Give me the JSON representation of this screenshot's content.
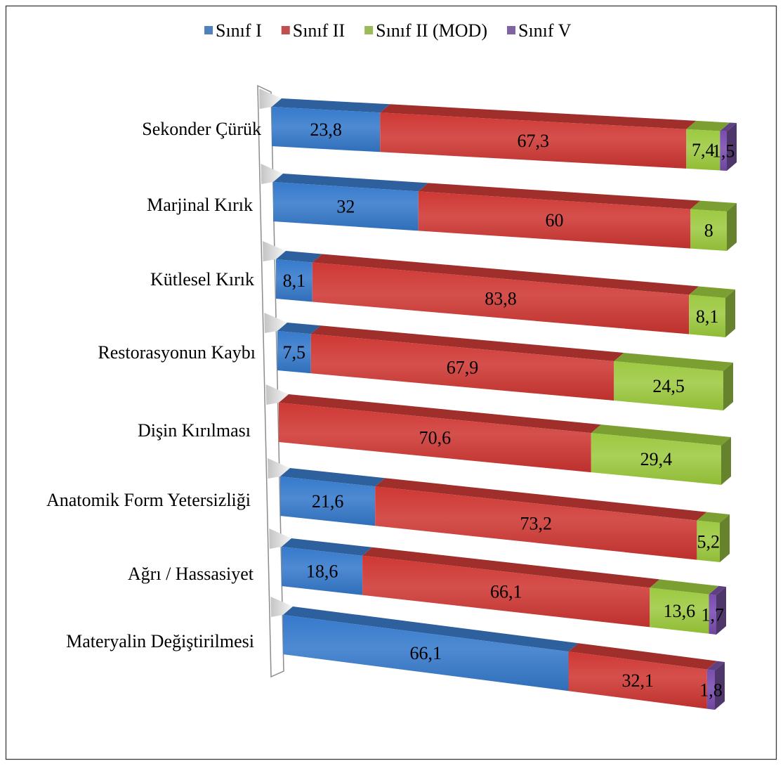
{
  "chart_data": {
    "type": "bar",
    "orientation": "horizontal",
    "stacking": "percent",
    "three_d": true,
    "legend": "top",
    "grid": false,
    "data_labels": true,
    "categories": [
      "Sekonder Çürük",
      "Marjinal Kırık",
      "Kütlesel Kırık",
      "Restorasyonun Kaybı",
      "Dişin Kırılması",
      "Anatomik Form Yetersizliği",
      "Ağrı / Hassasiyet",
      "Materyalin Değiştirilmesi"
    ],
    "series": [
      {
        "name": "Sınıf I",
        "color": "#4f81bd",
        "values": [
          23.8,
          32,
          8.1,
          7.5,
          null,
          21.6,
          18.6,
          66.1
        ]
      },
      {
        "name": "Sınıf II",
        "color": "#c0504d",
        "values": [
          67.3,
          60,
          83.8,
          67.9,
          70.6,
          73.2,
          66.1,
          32.1
        ]
      },
      {
        "name": "Sınıf II (MOD)",
        "color": "#9bbb59",
        "values": [
          7.4,
          8,
          8.1,
          24.5,
          29.4,
          5.2,
          13.6,
          null
        ]
      },
      {
        "name": "Sınıf V",
        "color": "#8064a2",
        "values": [
          1.5,
          null,
          null,
          null,
          null,
          null,
          1.7,
          1.8
        ]
      }
    ]
  }
}
